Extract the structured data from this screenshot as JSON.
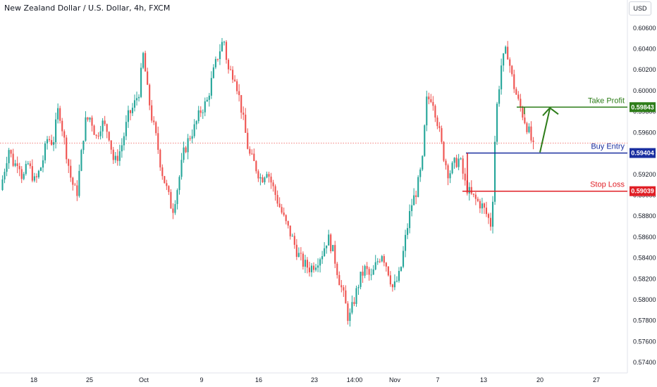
{
  "header": {
    "symbol_title": "New Zealand Dollar / U.S. Dollar, 4h, FXCM",
    "currency_button": "USD"
  },
  "chart_data": {
    "type": "candlestick",
    "title": "New Zealand Dollar / U.S. Dollar, 4h, FXCM",
    "price_axis": {
      "range": [
        0.573,
        0.6072
      ],
      "ticks": [
        "0.60600",
        "0.60400",
        "0.60200",
        "0.60000",
        "0.59800",
        "0.59600",
        "0.59400",
        "0.59200",
        "0.59000",
        "0.58800",
        "0.58600",
        "0.58400",
        "0.58200",
        "0.58000",
        "0.57800",
        "0.57600",
        "0.57400"
      ]
    },
    "time_axis": {
      "ticks": [
        "18",
        "25",
        "Oct",
        "9",
        "16",
        "23",
        "14:00",
        "Nov",
        "7",
        "13",
        "20",
        "27"
      ]
    },
    "grid": false,
    "price_path": [
      [
        0,
        0.5905
      ],
      [
        0.3,
        0.5925
      ],
      [
        0.6,
        0.5945
      ],
      [
        1.0,
        0.5928
      ],
      [
        1.3,
        0.5935
      ],
      [
        1.6,
        0.5915
      ],
      [
        2.0,
        0.593
      ],
      [
        2.5,
        0.5912
      ],
      [
        3.0,
        0.593
      ],
      [
        3.4,
        0.5955
      ],
      [
        3.8,
        0.595
      ],
      [
        4.2,
        0.5985
      ],
      [
        4.7,
        0.5945
      ],
      [
        5.1,
        0.5915
      ],
      [
        5.5,
        0.59
      ],
      [
        5.8,
        0.5935
      ],
      [
        6.1,
        0.597
      ],
      [
        6.5,
        0.5975
      ],
      [
        6.9,
        0.5955
      ],
      [
        7.3,
        0.597
      ],
      [
        7.8,
        0.596
      ],
      [
        8.2,
        0.593
      ],
      [
        8.7,
        0.5945
      ],
      [
        9.2,
        0.5975
      ],
      [
        9.6,
        0.5985
      ],
      [
        10.0,
        0.6
      ],
      [
        10.3,
        0.6035
      ],
      [
        10.6,
        0.6
      ],
      [
        10.9,
        0.5975
      ],
      [
        11.3,
        0.595
      ],
      [
        11.6,
        0.5925
      ],
      [
        12.0,
        0.5905
      ],
      [
        12.4,
        0.5885
      ],
      [
        12.8,
        0.591
      ],
      [
        13.2,
        0.594
      ],
      [
        13.6,
        0.5955
      ],
      [
        14.0,
        0.5965
      ],
      [
        14.4,
        0.598
      ],
      [
        14.9,
        0.599
      ],
      [
        15.3,
        0.6015
      ],
      [
        15.7,
        0.6035
      ],
      [
        16.1,
        0.605
      ],
      [
        16.4,
        0.602
      ],
      [
        16.9,
        0.6015
      ],
      [
        17.4,
        0.598
      ],
      [
        17.9,
        0.594
      ],
      [
        18.3,
        0.593
      ],
      [
        18.8,
        0.5915
      ],
      [
        19.2,
        0.5925
      ],
      [
        19.7,
        0.5905
      ],
      [
        20.1,
        0.589
      ],
      [
        20.5,
        0.5875
      ],
      [
        21.0,
        0.586
      ],
      [
        21.4,
        0.5845
      ],
      [
        21.8,
        0.5835
      ],
      [
        22.3,
        0.583
      ],
      [
        22.7,
        0.5835
      ],
      [
        23.2,
        0.5845
      ],
      [
        23.6,
        0.586
      ],
      [
        24.0,
        0.5845
      ],
      [
        24.4,
        0.582
      ],
      [
        24.8,
        0.58
      ],
      [
        25.1,
        0.578
      ],
      [
        25.5,
        0.58
      ],
      [
        25.9,
        0.582
      ],
      [
        26.3,
        0.583
      ],
      [
        26.7,
        0.582
      ],
      [
        27.1,
        0.5835
      ],
      [
        27.5,
        0.5845
      ],
      [
        27.9,
        0.583
      ],
      [
        28.3,
        0.581
      ],
      [
        28.8,
        0.5825
      ],
      [
        29.2,
        0.586
      ],
      [
        29.6,
        0.589
      ],
      [
        30.0,
        0.5905
      ],
      [
        30.4,
        0.593
      ],
      [
        30.7,
        0.599
      ],
      [
        31.1,
        0.5995
      ],
      [
        31.5,
        0.597
      ],
      [
        31.9,
        0.594
      ],
      [
        32.3,
        0.592
      ],
      [
        32.7,
        0.593
      ],
      [
        33.1,
        0.5935
      ],
      [
        33.5,
        0.591
      ],
      [
        33.9,
        0.59
      ],
      [
        34.3,
        0.5895
      ],
      [
        34.7,
        0.589
      ],
      [
        35.1,
        0.588
      ],
      [
        35.4,
        0.587
      ],
      [
        35.7,
        0.5975
      ],
      [
        36.1,
        0.6025
      ],
      [
        36.5,
        0.604
      ],
      [
        36.9,
        0.601
      ],
      [
        37.3,
        0.599
      ],
      [
        37.7,
        0.5975
      ],
      [
        38.1,
        0.596
      ],
      [
        38.4,
        0.5945
      ]
    ],
    "annotations": [
      {
        "label": "Take Profit",
        "price": "0.59843",
        "color": "#2e7d1a"
      },
      {
        "label": "Buy Entry",
        "price": "0.59404",
        "color": "#1a2fa0"
      },
      {
        "label": "Stop Loss",
        "price": "0.59039",
        "color": "#e01f26"
      }
    ],
    "reference_price": 0.595,
    "colors": {
      "up": "#26a69a",
      "down": "#ef5350"
    }
  }
}
